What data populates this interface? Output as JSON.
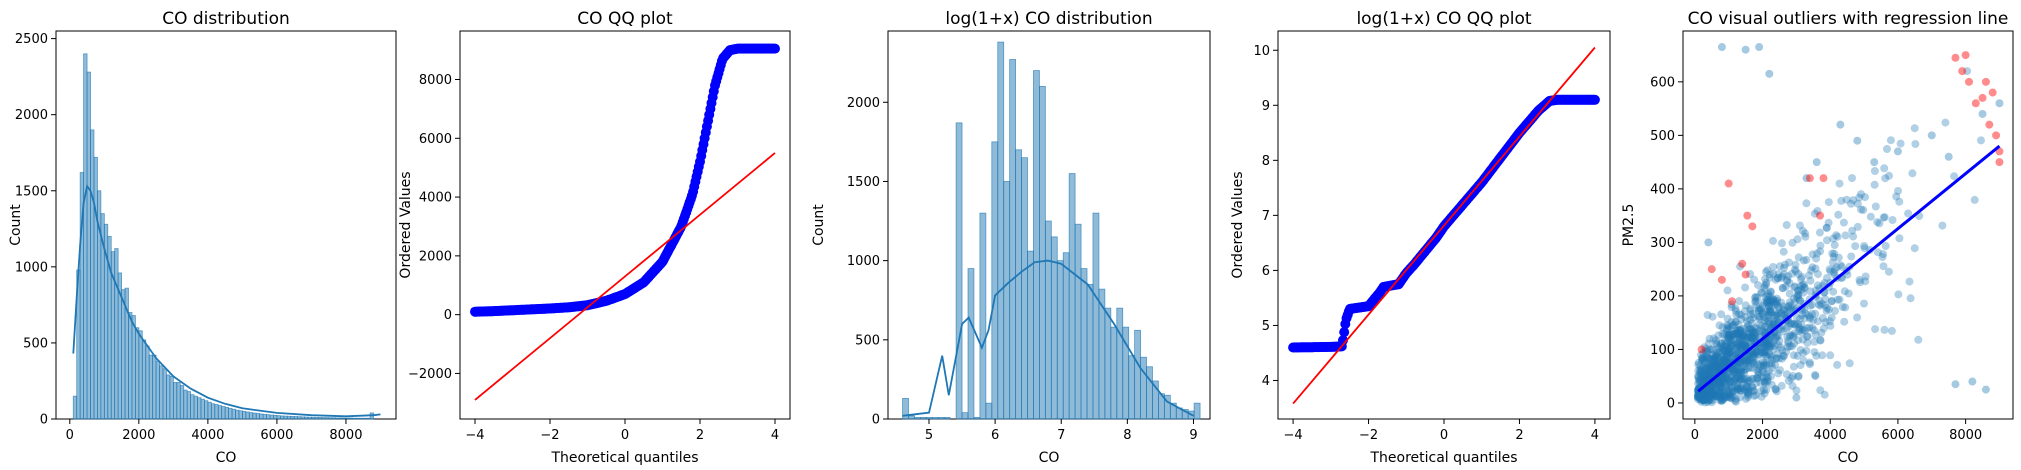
{
  "colors": {
    "hist_fill": "#1f77b4",
    "kde_line": "#1f77b4",
    "qq_points": "#0000ff",
    "qq_line": "#ff0000",
    "scatter_points": "#1f77b4",
    "outlier_points": "#ff0000",
    "regression_line": "#0000ff"
  },
  "chart_data": [
    {
      "type": "bar",
      "subtype": "histogram_with_kde",
      "title": "CO distribution",
      "xlabel": "CO",
      "ylabel": "Count",
      "xlim": [
        -400,
        9450
      ],
      "ylim": [
        0,
        2550
      ],
      "xticks": [
        0,
        2000,
        4000,
        6000,
        8000
      ],
      "yticks": [
        0,
        500,
        1000,
        1500,
        2000,
        2500
      ],
      "bin_start": 100,
      "bin_width": 100,
      "values": [
        150,
        980,
        1620,
        2400,
        2280,
        1900,
        1720,
        1500,
        1350,
        1280,
        1200,
        1100,
        1120,
        960,
        850,
        860,
        700,
        680,
        600,
        580,
        520,
        480,
        420,
        420,
        380,
        350,
        330,
        290,
        280,
        240,
        240,
        220,
        190,
        180,
        160,
        150,
        140,
        130,
        120,
        110,
        100,
        95,
        88,
        82,
        76,
        70,
        64,
        58,
        54,
        50,
        46,
        42,
        39,
        36,
        33,
        30,
        28,
        26,
        24,
        22,
        20,
        19,
        18,
        17,
        16,
        15,
        14,
        13,
        12,
        11,
        10,
        10,
        9,
        9,
        8,
        8,
        7,
        7,
        6,
        6,
        6,
        5,
        5,
        5,
        5,
        5,
        40
      ],
      "kde": {
        "x": [
          100,
          200,
          300,
          400,
          500,
          600,
          700,
          800,
          1000,
          1200,
          1500,
          1800,
          2000,
          2500,
          3000,
          3500,
          4000,
          4500,
          5000,
          6000,
          7000,
          8000,
          8800,
          9000
        ],
        "y": [
          430,
          800,
          1150,
          1420,
          1530,
          1500,
          1420,
          1300,
          1120,
          960,
          800,
          640,
          560,
          400,
          280,
          200,
          140,
          100,
          70,
          40,
          25,
          18,
          25,
          30
        ]
      }
    },
    {
      "type": "scatter",
      "subtype": "qq_plot",
      "title": "CO QQ plot",
      "xlabel": "Theoretical quantiles",
      "ylabel": "Ordered Values",
      "xlim": [
        -4.4,
        4.4
      ],
      "ylim": [
        -3550,
        9650
      ],
      "xticks": [
        -4,
        -2,
        0,
        2,
        4
      ],
      "yticks": [
        -2000,
        0,
        2000,
        4000,
        6000,
        8000
      ],
      "ordered_values": {
        "x": [
          -4.0,
          -3.5,
          -3.0,
          -2.5,
          -2.0,
          -1.5,
          -1.0,
          -0.5,
          0.0,
          0.5,
          1.0,
          1.5,
          1.8,
          2.0,
          2.2,
          2.4,
          2.6,
          2.8,
          3.0,
          3.5,
          4.0
        ],
        "y": [
          100,
          120,
          150,
          180,
          210,
          250,
          320,
          470,
          700,
          1100,
          1800,
          3000,
          4100,
          5200,
          6500,
          7800,
          8700,
          9000,
          9050,
          9050,
          9050
        ]
      },
      "fit_line": {
        "x": [
          -4.0,
          4.0
        ],
        "y": [
          -2900,
          5500
        ]
      }
    },
    {
      "type": "bar",
      "subtype": "histogram_with_kde",
      "title": "log(1+x) CO distribution",
      "xlabel": "CO",
      "ylabel": "Count",
      "xlim": [
        4.38,
        9.25
      ],
      "ylim": [
        0,
        2450
      ],
      "xticks": [
        5,
        6,
        7,
        8,
        9
      ],
      "yticks": [
        0,
        500,
        1000,
        1500,
        2000
      ],
      "bin_start": 4.6,
      "bin_width": 0.09,
      "values": [
        130,
        20,
        10,
        10,
        10,
        10,
        10,
        10,
        0,
        1870,
        40,
        950,
        10,
        1300,
        100,
        1750,
        2380,
        1500,
        2270,
        1700,
        1650,
        1060,
        2200,
        2100,
        1250,
        1150,
        1000,
        1050,
        1550,
        1230,
        950,
        850,
        1300,
        820,
        700,
        580,
        700,
        580,
        400,
        560,
        390,
        330,
        240,
        160,
        150,
        100,
        70,
        60,
        50,
        100
      ],
      "kde": {
        "x": [
          4.6,
          4.8,
          5.0,
          5.2,
          5.3,
          5.5,
          5.6,
          5.8,
          5.9,
          6.0,
          6.2,
          6.4,
          6.6,
          6.8,
          7.0,
          7.4,
          7.8,
          8.2,
          8.6,
          9.0
        ],
        "y": [
          20,
          30,
          40,
          400,
          150,
          600,
          640,
          450,
          560,
          780,
          860,
          930,
          990,
          1000,
          980,
          850,
          600,
          320,
          110,
          20
        ]
      }
    },
    {
      "type": "scatter",
      "subtype": "qq_plot",
      "title": "log(1+x) CO QQ plot",
      "xlabel": "Theoretical quantiles",
      "ylabel": "Ordered Values",
      "xlim": [
        -4.4,
        4.4
      ],
      "ylim": [
        3.3,
        10.35
      ],
      "xticks": [
        -4,
        -2,
        0,
        2,
        4
      ],
      "yticks": [
        4,
        5,
        6,
        7,
        8,
        9,
        10
      ],
      "ordered_values": {
        "x": [
          -4.0,
          -3.0,
          -2.7,
          -2.6,
          -2.5,
          -2.0,
          -1.7,
          -1.6,
          -1.2,
          -1.0,
          -0.8,
          -0.5,
          -0.2,
          0.0,
          0.5,
          1.0,
          1.5,
          2.0,
          2.5,
          2.8,
          3.0,
          3.5,
          4.0
        ],
        "y": [
          4.6,
          4.61,
          4.62,
          5.1,
          5.3,
          5.35,
          5.6,
          5.7,
          5.75,
          5.95,
          6.1,
          6.35,
          6.6,
          6.8,
          7.2,
          7.6,
          8.05,
          8.5,
          8.9,
          9.08,
          9.1,
          9.1,
          9.1
        ]
      },
      "fit_line": {
        "x": [
          -4.0,
          4.0
        ],
        "y": [
          3.58,
          10.05
        ]
      }
    },
    {
      "type": "scatter",
      "subtype": "scatter_with_regression",
      "title": "CO visual outliers with regression line",
      "xlabel": "CO",
      "ylabel": "PM2.5",
      "xlim": [
        -350,
        9400
      ],
      "ylim": [
        -30,
        695
      ],
      "xticks": [
        0,
        2000,
        4000,
        6000,
        8000
      ],
      "yticks": [
        0,
        100,
        200,
        300,
        400,
        500,
        600
      ],
      "regression_line": {
        "x": [
          100,
          9000
        ],
        "y": [
          22,
          480
        ]
      },
      "sample_points": {
        "x": [
          800,
          1500,
          1900,
          2200,
          3300,
          3600,
          4300,
          4800,
          5300,
          6000,
          7000,
          7500,
          8500,
          9000,
          400,
          1200,
          3000,
          7700,
          8600,
          8200
        ],
        "y": [
          665,
          660,
          665,
          615,
          420,
          450,
          520,
          490,
          450,
          470,
          500,
          460,
          540,
          560,
          300,
          30,
          10,
          35,
          25,
          40
        ]
      },
      "outliers": {
        "x": [
          7700,
          7900,
          8100,
          8300,
          8500,
          8700,
          8900,
          9000,
          8000,
          8600,
          8800,
          9000,
          1550,
          1700,
          1000,
          1400,
          1500,
          800,
          500,
          200,
          1100,
          3400,
          3700,
          3800
        ],
        "y": [
          645,
          620,
          600,
          560,
          570,
          520,
          500,
          470,
          650,
          600,
          580,
          450,
          350,
          330,
          410,
          260,
          240,
          230,
          250,
          100,
          190,
          420,
          350,
          420
        ]
      }
    }
  ]
}
